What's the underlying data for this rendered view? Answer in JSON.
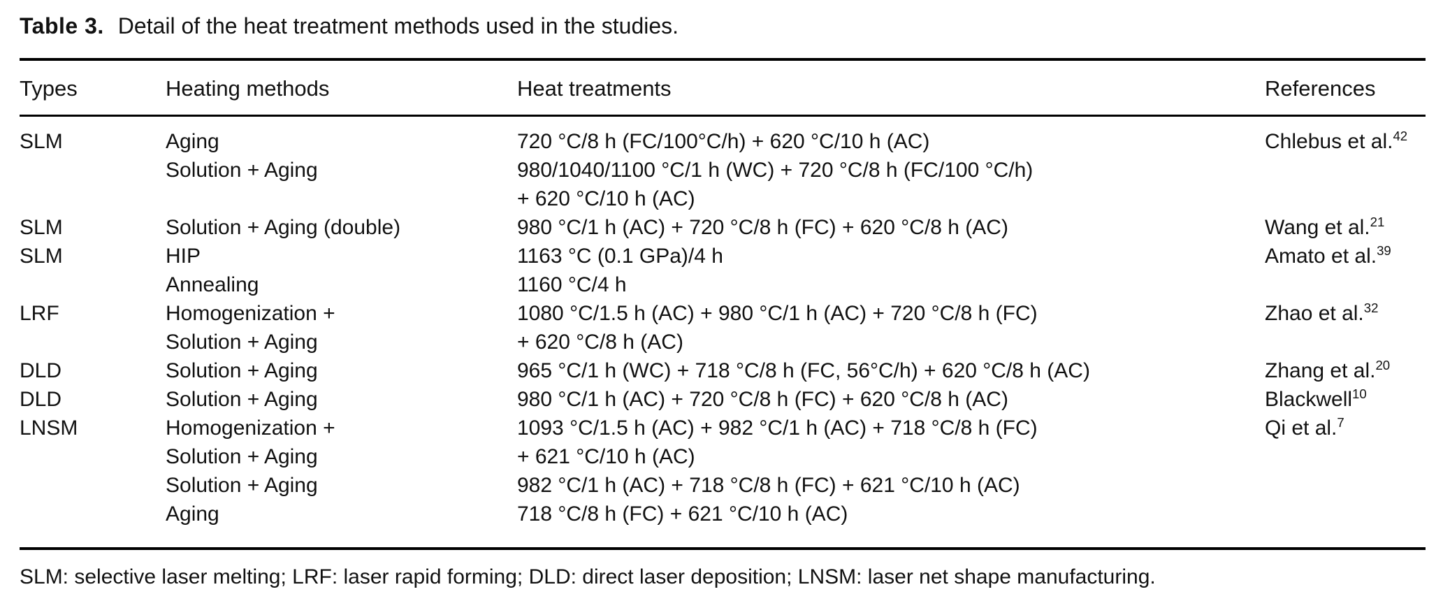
{
  "caption": {
    "label": "Table 3.",
    "text": "Detail of the heat treatment methods used in the studies."
  },
  "columns": [
    "Types",
    "Heating methods",
    "Heat treatments",
    "References"
  ],
  "rows": [
    {
      "type": "SLM",
      "method": "Aging",
      "treatment": "720 °C/8 h (FC/100°C/h) + 620 °C/10 h (AC)",
      "ref": "Chlebus et al.",
      "ref_sup": "42"
    },
    {
      "type": "",
      "method": "Solution + Aging",
      "treatment": "980/1040/1100 °C/1 h (WC) + 720 °C/8 h (FC/100 °C/h)"
    },
    {
      "type": "",
      "method": "",
      "treatment": "+ 620 °C/10 h (AC)"
    },
    {
      "type": "SLM",
      "method": "Solution + Aging (double)",
      "treatment": "980 °C/1 h (AC) + 720 °C/8 h (FC) + 620 °C/8 h (AC)",
      "ref": "Wang et al.",
      "ref_sup": "21"
    },
    {
      "type": "SLM",
      "method": "HIP",
      "treatment": "1163 °C (0.1 GPa)/4 h",
      "ref": "Amato et al.",
      "ref_sup": "39"
    },
    {
      "type": "",
      "method": "Annealing",
      "treatment": "1160 °C/4 h"
    },
    {
      "type": "LRF",
      "method": "Homogenization +",
      "treatment": "1080 °C/1.5 h (AC) + 980 °C/1 h (AC) + 720 °C/8 h (FC)",
      "ref": "Zhao et al.",
      "ref_sup": "32"
    },
    {
      "type": "",
      "method": "Solution + Aging",
      "treatment": "+ 620 °C/8 h (AC)"
    },
    {
      "type": "DLD",
      "method": "Solution + Aging",
      "treatment": "965 °C/1 h (WC) + 718 °C/8 h (FC, 56°C/h) + 620 °C/8 h (AC)",
      "ref": "Zhang et al.",
      "ref_sup": "20"
    },
    {
      "type": "DLD",
      "method": "Solution + Aging",
      "treatment": "980 °C/1 h (AC) + 720 °C/8 h (FC) + 620 °C/8 h (AC)",
      "ref": "Blackwell",
      "ref_sup": "10"
    },
    {
      "type": "LNSM",
      "method": "Homogenization +",
      "treatment": "1093 °C/1.5 h (AC) + 982 °C/1 h (AC) + 718 °C/8 h (FC)",
      "ref": "Qi et al.",
      "ref_sup": "7"
    },
    {
      "type": "",
      "method": "Solution + Aging",
      "treatment": "+ 621 °C/10 h (AC)"
    },
    {
      "type": "",
      "method": "Solution + Aging",
      "treatment": "982 °C/1 h (AC) + 718 °C/8 h (FC) + 621 °C/10 h (AC)"
    },
    {
      "type": "",
      "method": "Aging",
      "treatment": "718 °C/8 h (FC) + 621 °C/10 h (AC)"
    }
  ],
  "footnote": "SLM: selective laser melting; LRF: laser rapid forming; DLD: direct laser deposition; LNSM: laser net shape manufacturing."
}
